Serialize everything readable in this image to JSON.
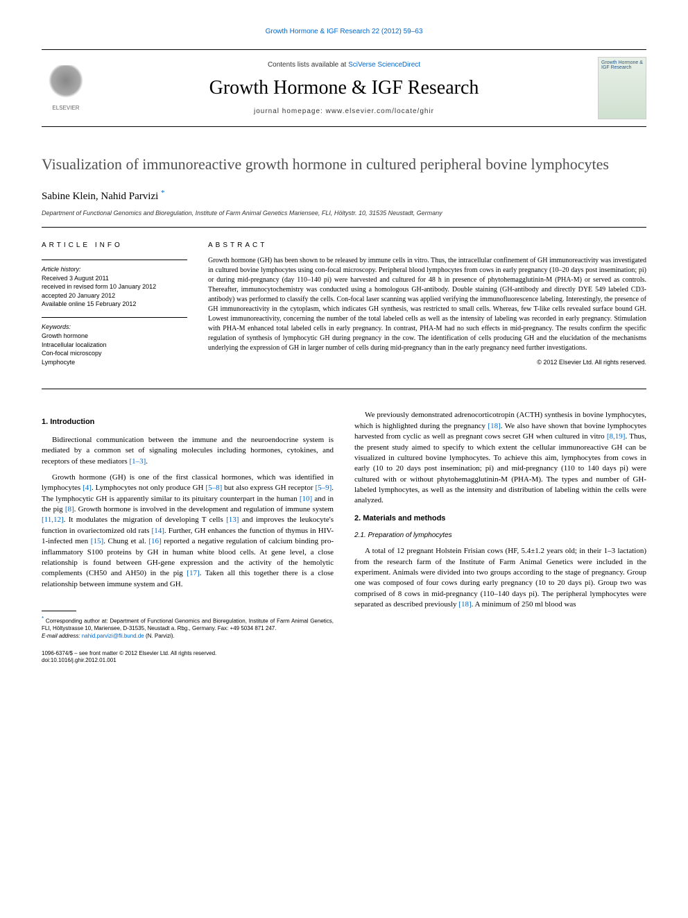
{
  "top_link": "Growth Hormone & IGF Research 22 (2012) 59–63",
  "masthead": {
    "contents_text": "Contents lists available at ",
    "contents_link": "SciVerse ScienceDirect",
    "journal_name": "Growth Hormone & IGF Research",
    "homepage_label": "journal homepage: ",
    "homepage_url": "www.elsevier.com/locate/ghir",
    "elsevier_label": "ELSEVIER",
    "cover_text": "Growth Hormone & IGF Research"
  },
  "title": "Visualization of immunoreactive growth hormone in cultured peripheral bovine lymphocytes",
  "authors": "Sabine Klein, Nahid Parvizi",
  "author_mark": "*",
  "affiliation": "Department of Functional Genomics and Bioregulation, Institute of Farm Animal Genetics Mariensee, FLI, Höltystr. 10, 31535 Neustadt, Germany",
  "info": {
    "heading": "ARTICLE INFO",
    "history_label": "Article history:",
    "history": "Received 3 August 2011\nreceived in revised form 10 January 2012\naccepted 20 January 2012\nAvailable online 15 February 2012",
    "keywords_label": "Keywords:",
    "keywords": "Growth hormone\nIntracellular localization\nCon-focal microscopy\nLymphocyte"
  },
  "abstract": {
    "heading": "ABSTRACT",
    "text": "Growth hormone (GH) has been shown to be released by immune cells in vitro. Thus, the intracellular confinement of GH immunoreactivity was investigated in cultured bovine lymphocytes using con-focal microscopy. Peripheral blood lymphocytes from cows in early pregnancy (10–20 days post insemination; pi) or during mid-pregnancy (day 110–140 pi) were harvested and cultured for 48 h in presence of phytohemagglutinin-M (PHA-M) or served as controls. Thereafter, immunocytochemistry was conducted using a homologous GH-antibody. Double staining (GH-antibody and directly DYE 549 labeled CD3-antibody) was performed to classify the cells. Con-focal laser scanning was applied verifying the immunofluorescence labeling. Interestingly, the presence of GH immunoreactivity in the cytoplasm, which indicates GH synthesis, was restricted to small cells. Whereas, few T-like cells revealed surface bound GH. Lowest immunoreactivity, concerning the number of the total labeled cells as well as the intensity of labeling was recorded in early pregnancy. Stimulation with PHA-M enhanced total labeled cells in early pregnancy. In contrast, PHA-M had no such effects in mid-pregnancy. The results confirm the specific regulation of synthesis of lymphocytic GH during pregnancy in the cow. The identification of cells producing GH and the elucidation of the mechanisms underlying the expression of GH in larger number of cells during mid-pregnancy than in the early pregnancy need further investigations.",
    "copyright": "© 2012 Elsevier Ltd. All rights reserved."
  },
  "sections": {
    "intro_heading": "1. Introduction",
    "intro_p1_a": "Bidirectional communication between the immune and the neuroendocrine system is mediated by a common set of signaling molecules including hormones, cytokines, and receptors of these mediators ",
    "intro_p1_cite1": "[1–3]",
    "intro_p1_b": ".",
    "intro_p2_a": "Growth hormone (GH) is one of the first classical hormones, which was identified in lymphocytes ",
    "intro_p2_cite1": "[4]",
    "intro_p2_b": ". Lymphocytes not only produce GH ",
    "intro_p2_cite2": "[5–8]",
    "intro_p2_c": " but also express GH receptor ",
    "intro_p2_cite3": "[5–9]",
    "intro_p2_d": ". The lymphocytic GH is apparently similar to its pituitary counterpart in the human ",
    "intro_p2_cite4": "[10]",
    "intro_p2_e": " and in the pig ",
    "intro_p2_cite5": "[8]",
    "intro_p2_f": ". Growth hormone is involved in the development and regulation of immune system ",
    "intro_p2_cite6": "[11,12]",
    "intro_p2_g": ". It modulates the migration of developing T cells ",
    "intro_p2_cite7": "[13]",
    "intro_p2_h": " and improves the leukocyte's function in ovariectomized old rats ",
    "intro_p2_cite8": "[14]",
    "intro_p2_i": ". Further, GH enhances the function of thymus in HIV-1-infected men ",
    "intro_p2_cite9": "[15]",
    "intro_p2_j": ". Chung et al. ",
    "intro_p2_cite10": "[16]",
    "intro_p2_k": " reported a negative regulation of calcium binding pro-inflammatory S100 proteins by GH in human white blood cells. At gene level, a close relationship is found between GH-gene expression and the activity of the hemolytic complements (CH50 and AH50) in the pig ",
    "intro_p2_cite11": "[17]",
    "intro_p2_l": ". Taken all this together there is a close relationship between immune system and GH.",
    "intro_p3_a": "We previously demonstrated adrenocorticotropin (ACTH) synthesis in bovine lymphocytes, which is highlighted during the pregnancy ",
    "intro_p3_cite1": "[18]",
    "intro_p3_b": ". We also have shown that bovine lymphocytes harvested from cyclic as well as pregnant cows secret GH when cultured in vitro ",
    "intro_p3_cite2": "[8,19]",
    "intro_p3_c": ". Thus, the present study aimed to specify to which extent the cellular immunoreactive GH can be visualized in cultured bovine lymphocytes. To achieve this aim, lymphocytes from cows in early (10 to 20 days post insemination; pi) and mid-pregnancy (110 to 140 days pi) were cultured with or without phytohemagglutinin-M (PHA-M). The types and number of GH-labeled lymphocytes, as well as the intensity and distribution of labeling within the cells were analyzed.",
    "methods_heading": "2. Materials and methods",
    "methods_sub1": "2.1. Preparation of lymphocytes",
    "methods_p1_a": "A total of 12 pregnant Holstein Frisian cows (HF, 5.4±1.2 years old; in their 1–3 lactation) from the research farm of the Institute of Farm Animal Genetics were included in the experiment. Animals were divided into two groups according to the stage of pregnancy. Group one was composed of four cows during early pregnancy (10 to 20 days pi). Group two was comprised of 8 cows in mid-pregnancy (110–140 days pi). The peripheral lymphocytes were separated as described previously ",
    "methods_p1_cite1": "[18]",
    "methods_p1_b": ". A minimum of 250 ml blood was"
  },
  "footnote": {
    "corr_label": "* ",
    "corr_text": "Corresponding author at: Department of Functional Genomics and Bioregulation, Institute of Farm Animal Genetics, FLI, Höltystrasse 10, Mariensee, D-31535, Neustadt a. Rbg., Germany. Fax: +49 5034 871 247.",
    "email_label": "E-mail address: ",
    "email": "nahid.parvizi@fli.bund.de",
    "email_suffix": " (N. Parvizi)."
  },
  "footer": {
    "line1": "1096-6374/$ – see front matter © 2012 Elsevier Ltd. All rights reserved.",
    "line2": "doi:10.1016/j.ghir.2012.01.001"
  },
  "colors": {
    "link": "#0066cc",
    "text": "#000000",
    "title_gray": "#505050"
  }
}
